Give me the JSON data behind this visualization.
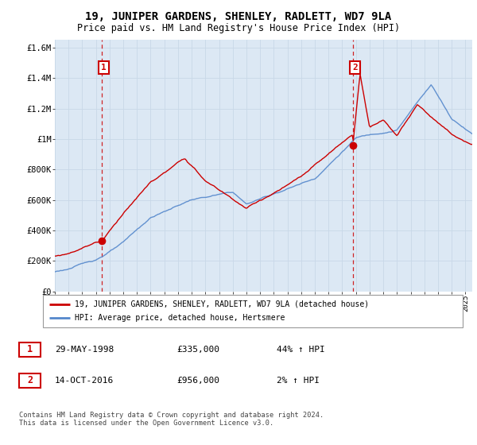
{
  "title": "19, JUNIPER GARDENS, SHENLEY, RADLETT, WD7 9LA",
  "subtitle": "Price paid vs. HM Land Registry's House Price Index (HPI)",
  "xlim": [
    1995.0,
    2025.5
  ],
  "ylim": [
    0,
    1650000
  ],
  "yticks": [
    0,
    200000,
    400000,
    600000,
    800000,
    1000000,
    1200000,
    1400000,
    1600000
  ],
  "ytick_labels": [
    "£0",
    "£200K",
    "£400K",
    "£600K",
    "£800K",
    "£1M",
    "£1.2M",
    "£1.4M",
    "£1.6M"
  ],
  "sale1_x": 1998.41,
  "sale1_y": 335000,
  "sale1_label": "1",
  "sale2_x": 2016.79,
  "sale2_y": 956000,
  "sale2_label": "2",
  "vline1_x": 1998.41,
  "vline2_x": 2016.79,
  "legend_line1": "19, JUNIPER GARDENS, SHENLEY, RADLETT, WD7 9LA (detached house)",
  "legend_line2": "HPI: Average price, detached house, Hertsmere",
  "table_rows": [
    {
      "num": "1",
      "date": "29-MAY-1998",
      "price": "£335,000",
      "hpi": "44% ↑ HPI"
    },
    {
      "num": "2",
      "date": "14-OCT-2016",
      "price": "£956,000",
      "hpi": "2% ↑ HPI"
    }
  ],
  "footer": "Contains HM Land Registry data © Crown copyright and database right 2024.\nThis data is licensed under the Open Government Licence v3.0.",
  "hpi_color": "#5588cc",
  "price_color": "#cc0000",
  "grid_color": "#c8d8e8",
  "plot_bg": "#dce8f4",
  "fig_bg": "#ffffff"
}
